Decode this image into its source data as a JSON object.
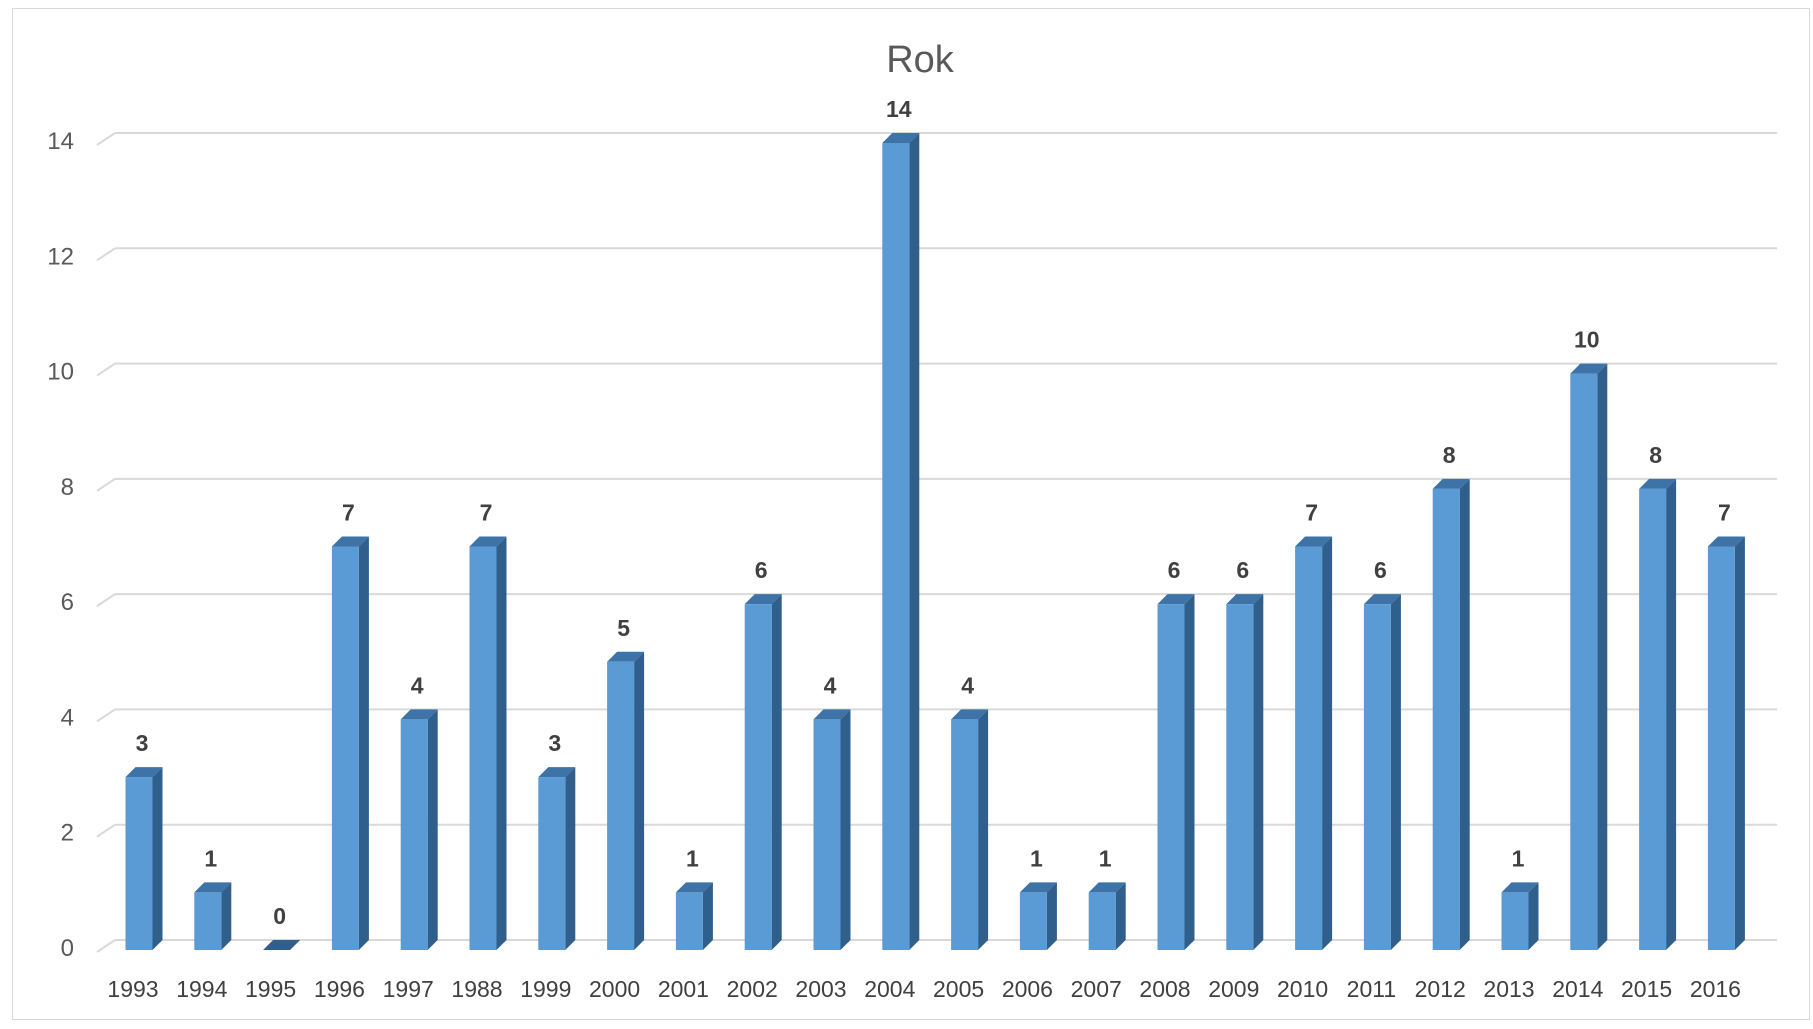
{
  "chart_data": {
    "type": "bar",
    "title": "Rok",
    "xlabel": "",
    "ylabel": "",
    "categories": [
      "1993",
      "1994",
      "1995",
      "1996",
      "1997",
      "1988",
      "1999",
      "2000",
      "2001",
      "2002",
      "2003",
      "2004",
      "2005",
      "2006",
      "2007",
      "2008",
      "2009",
      "2010",
      "2011",
      "2012",
      "2013",
      "2014",
      "2015",
      "2016"
    ],
    "values": [
      3,
      1,
      0,
      7,
      4,
      7,
      3,
      5,
      1,
      6,
      4,
      14,
      4,
      1,
      1,
      6,
      6,
      7,
      6,
      8,
      1,
      10,
      8,
      7
    ],
    "ylim": [
      0,
      14
    ],
    "yticks": [
      "0",
      "2",
      "4",
      "6",
      "8",
      "10",
      "12",
      "14"
    ],
    "grid": true,
    "legend": "none",
    "colors": {
      "bar_front": "#5b9bd5",
      "bar_side": "#2f5f8a",
      "bar_top": "#3d73a6"
    }
  }
}
